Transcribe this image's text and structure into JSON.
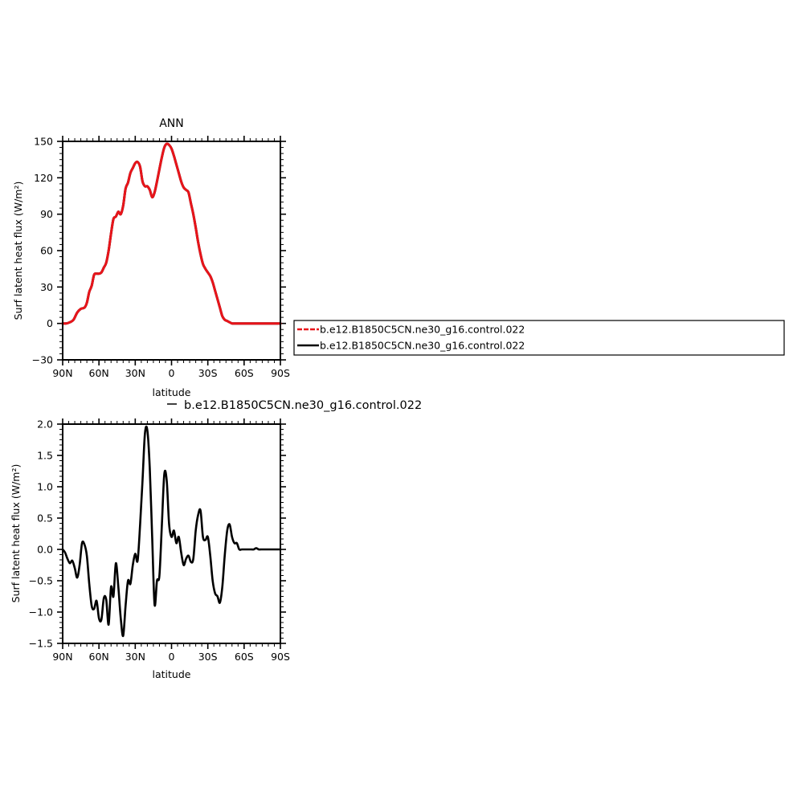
{
  "colors": {
    "series_a": "#e8141a",
    "series_b": "#000000",
    "frame": "#000000"
  },
  "chart_data": [
    {
      "type": "line",
      "title": "ANN",
      "xlabel": "latitude",
      "ylabel": "Surf latent heat flux (W/m²)",
      "xlim": [
        90,
        -90
      ],
      "ylim": [
        -30,
        150
      ],
      "xticks": [
        90,
        60,
        30,
        0,
        -30,
        -60,
        -90
      ],
      "xtick_labels": [
        "90N",
        "60N",
        "30N",
        "0",
        "30S",
        "60S",
        "90S"
      ],
      "yticks": [
        -30,
        0,
        30,
        60,
        90,
        120,
        150
      ],
      "ytick_labels": [
        "−30",
        "0",
        "30",
        "60",
        "90",
        "120",
        "150"
      ],
      "grid": false,
      "legend_position": "right",
      "x": [
        90,
        87,
        84,
        81,
        78,
        75,
        72,
        70,
        68,
        66,
        64,
        62,
        60,
        58,
        56,
        54,
        52,
        50,
        48,
        46,
        44,
        42,
        40,
        38,
        36,
        34,
        32,
        30,
        28,
        26,
        24,
        22,
        20,
        18,
        16,
        14,
        12,
        10,
        8,
        6,
        4,
        2,
        0,
        -2,
        -4,
        -6,
        -8,
        -10,
        -12,
        -14,
        -16,
        -18,
        -20,
        -22,
        -24,
        -26,
        -28,
        -30,
        -32,
        -34,
        -36,
        -38,
        -40,
        -42,
        -44,
        -46,
        -48,
        -50,
        -52,
        -54,
        -56,
        -58,
        -60,
        -62,
        -64,
        -66,
        -68,
        -70,
        -72,
        -74,
        -76,
        -78,
        -80,
        -82,
        -84,
        -86,
        -88,
        -90
      ],
      "series": [
        {
          "name": "b.e12.B1850C5CN.ne30_g16.control.022",
          "color": "#e8141a",
          "dashed": true,
          "values": [
            0,
            0,
            1,
            3,
            9,
            12,
            13,
            17,
            26,
            31,
            40,
            41,
            41,
            42,
            46,
            50,
            60,
            74,
            86,
            88,
            92,
            90,
            97,
            111,
            116,
            124,
            128,
            132,
            133,
            129,
            117,
            113,
            113,
            110,
            104,
            108,
            117,
            127,
            137,
            145,
            148,
            147,
            144,
            138,
            131,
            124,
            117,
            112,
            110,
            108,
            99,
            90,
            79,
            67,
            57,
            49,
            45,
            42,
            39,
            34,
            27,
            20,
            13,
            6,
            3,
            2,
            1,
            0,
            0,
            0,
            0,
            0,
            0,
            0,
            0,
            0,
            0,
            0,
            0,
            0,
            0,
            0,
            0,
            0,
            0,
            0,
            0,
            0
          ]
        },
        {
          "name": "b.e12.B1850C5CN.ne30_g16.control.022",
          "color": "#000000",
          "dashed": false,
          "values": [
            0,
            0,
            1,
            3,
            9,
            12,
            13,
            17,
            26,
            31,
            40,
            41,
            41,
            42,
            46,
            50,
            60,
            74,
            86,
            88,
            92,
            90,
            97,
            111,
            116,
            124,
            128,
            132,
            133,
            129,
            117,
            113,
            113,
            110,
            104,
            108,
            117,
            127,
            137,
            145,
            148,
            147,
            144,
            138,
            131,
            124,
            117,
            112,
            110,
            108,
            99,
            90,
            79,
            67,
            57,
            49,
            45,
            42,
            39,
            34,
            27,
            20,
            13,
            6,
            3,
            2,
            1,
            0,
            0,
            0,
            0,
            0,
            0,
            0,
            0,
            0,
            0,
            0,
            0,
            0,
            0,
            0,
            0,
            0,
            0,
            0,
            0,
            0
          ]
        }
      ]
    },
    {
      "type": "line",
      "title": "",
      "xlabel": "latitude",
      "ylabel": "Surf latent heat flux (W/m²)",
      "xlim": [
        90,
        -90
      ],
      "ylim": [
        -1.5,
        2.0
      ],
      "xticks": [
        90,
        60,
        30,
        0,
        -30,
        -60,
        -90
      ],
      "xtick_labels": [
        "90N",
        "60N",
        "30N",
        "0",
        "30S",
        "60S",
        "90S"
      ],
      "yticks": [
        -1.5,
        -1.0,
        -0.5,
        0.0,
        0.5,
        1.0,
        1.5,
        2.0
      ],
      "ytick_labels": [
        "−1.5",
        "−1.0",
        "−0.5",
        "0.0",
        "0.5",
        "1.0",
        "1.5",
        "2.0"
      ],
      "grid": false,
      "legend_position": "top",
      "x": [
        90,
        88,
        86,
        84,
        82,
        80,
        78,
        76,
        74,
        72,
        70,
        68,
        66,
        64,
        62,
        60,
        58,
        56,
        54,
        52,
        50,
        48,
        46,
        44,
        42,
        40,
        38,
        36,
        34,
        32,
        30,
        28,
        26,
        24,
        22,
        20,
        18,
        16,
        14,
        12,
        10,
        8,
        6,
        4,
        2,
        0,
        -2,
        -4,
        -6,
        -8,
        -10,
        -12,
        -14,
        -16,
        -18,
        -20,
        -22,
        -24,
        -26,
        -28,
        -30,
        -32,
        -34,
        -36,
        -38,
        -40,
        -42,
        -44,
        -46,
        -48,
        -50,
        -52,
        -54,
        -56,
        -58,
        -60,
        -62,
        -64,
        -66,
        -68,
        -70,
        -72,
        -74,
        -76,
        -78,
        -80,
        -82,
        -84,
        -86,
        -88,
        -90
      ],
      "series": [
        {
          "name": "b.e12.B1850C5CN.ne30_g16.control.022",
          "color": "#000000",
          "dashed": false,
          "values": [
            0.0,
            -0.05,
            -0.15,
            -0.22,
            -0.18,
            -0.3,
            -0.45,
            -0.25,
            0.1,
            0.08,
            -0.1,
            -0.55,
            -0.9,
            -0.95,
            -0.82,
            -1.1,
            -1.12,
            -0.78,
            -0.8,
            -1.2,
            -0.6,
            -0.75,
            -0.22,
            -0.6,
            -1.1,
            -1.38,
            -0.9,
            -0.5,
            -0.55,
            -0.25,
            -0.07,
            -0.18,
            0.4,
            1.1,
            1.85,
            1.9,
            1.3,
            0.2,
            -0.88,
            -0.5,
            -0.42,
            0.4,
            1.2,
            1.1,
            0.4,
            0.2,
            0.3,
            0.1,
            0.2,
            -0.05,
            -0.25,
            -0.15,
            -0.1,
            -0.2,
            -0.15,
            0.3,
            0.55,
            0.62,
            0.2,
            0.15,
            0.2,
            -0.1,
            -0.5,
            -0.7,
            -0.75,
            -0.85,
            -0.6,
            -0.1,
            0.3,
            0.4,
            0.2,
            0.1,
            0.1,
            0.0,
            0.0,
            0.0,
            0.0,
            0.0,
            0.0,
            0.0,
            0.02,
            0.0,
            0.0,
            0.0,
            0.0,
            0.0,
            0.0,
            0.0,
            0.0,
            0.0,
            0.0
          ]
        }
      ]
    }
  ]
}
